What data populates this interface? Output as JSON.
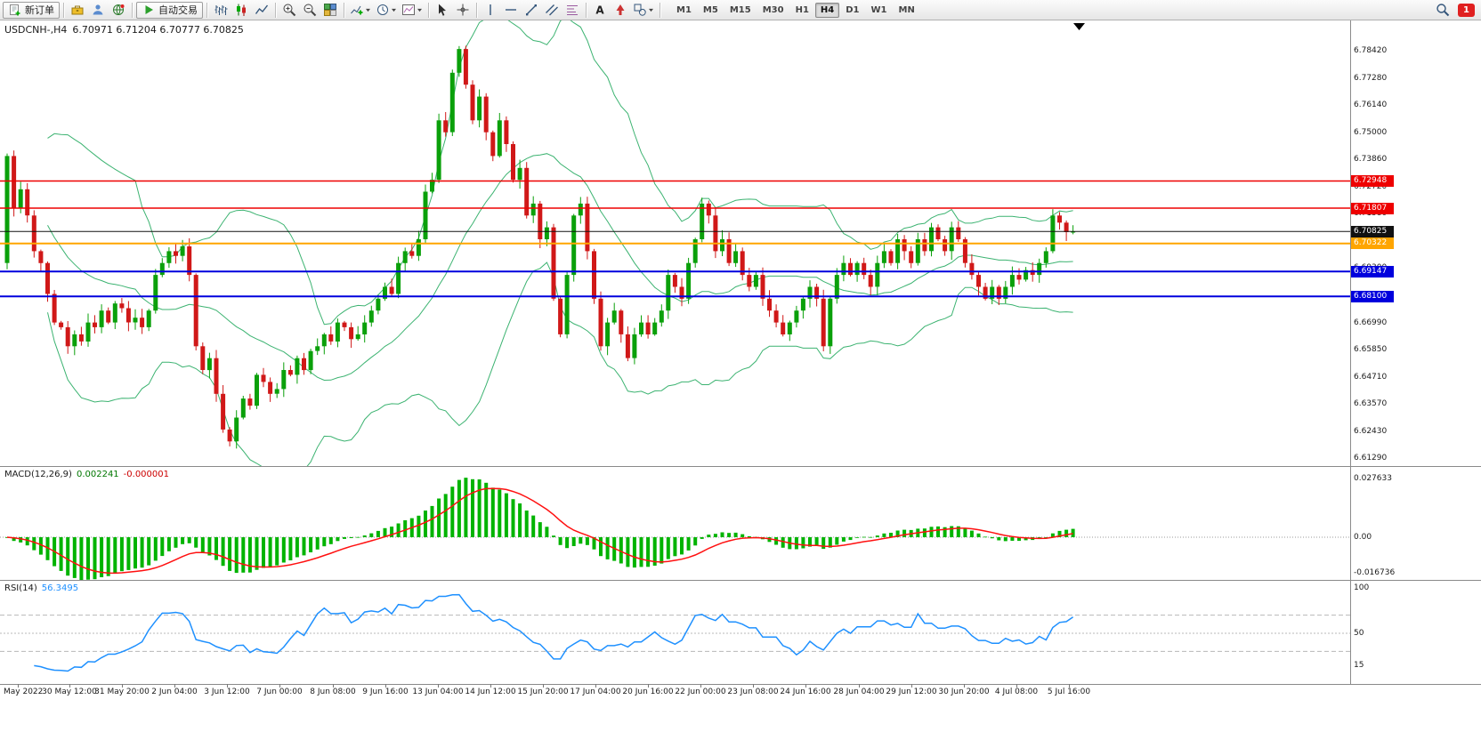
{
  "toolbar": {
    "new_order_label": "新订单",
    "autotrade_label": "自动交易",
    "timeframes": [
      "M1",
      "M5",
      "M15",
      "M30",
      "H1",
      "H4",
      "D1",
      "W1",
      "MN"
    ],
    "active_timeframe": "H4",
    "notification_count": "1"
  },
  "chart": {
    "title_symbol": "USDCNH-,H4",
    "title_ohlc": "6.70971 6.71204 6.70777 6.70825",
    "price_axis_labels": [
      "6.78420",
      "6.77280",
      "6.76140",
      "6.75000",
      "6.73860",
      "6.72720",
      "6.71580",
      "6.70440",
      "6.69300",
      "6.68160",
      "6.66990",
      "6.65850",
      "6.64710",
      "6.63570",
      "6.62430",
      "6.61290"
    ],
    "time_axis_labels": [
      "May 2022",
      "30 May 12:00",
      "31 May 20:00",
      "2 Jun 04:00",
      "3 Jun 12:00",
      "7 Jun 00:00",
      "8 Jun 08:00",
      "9 Jun 16:00",
      "13 Jun 04:00",
      "14 Jun 12:00",
      "15 Jun 20:00",
      "17 Jun 04:00",
      "20 Jun 16:00",
      "22 Jun 00:00",
      "23 Jun 08:00",
      "24 Jun 16:00",
      "28 Jun 04:00",
      "29 Jun 12:00",
      "30 Jun 20:00",
      "4 Jul 08:00",
      "5 Jul 16:00"
    ]
  },
  "macd_panel": {
    "label": "MACD(12,26,9)",
    "value_main": "0.002241",
    "value_signal": "-0.000001",
    "axis_labels": [
      "0.027633",
      "0.00",
      "-0.016736"
    ]
  },
  "rsi_panel": {
    "label": "RSI(14)",
    "value": "56.3495",
    "axis_labels": [
      "100",
      "50",
      "15"
    ]
  },
  "chart_data": {
    "type": "candlestick",
    "symbol": "USDCNH-",
    "timeframe": "H4",
    "current_ohlc": {
      "open": 6.70971,
      "high": 6.71204,
      "low": 6.70777,
      "close": 6.70825
    },
    "visible_price_range": [
      6.611,
      6.797
    ],
    "up_color": "#0aa00a",
    "down_color": "#d01818",
    "first_open": 6.695,
    "closes": [
      6.74,
      6.718,
      6.726,
      6.715,
      6.7,
      6.695,
      6.682,
      6.67,
      6.668,
      6.66,
      6.665,
      6.662,
      6.67,
      6.668,
      6.675,
      6.67,
      6.678,
      6.676,
      6.67,
      6.672,
      6.668,
      6.675,
      6.69,
      6.695,
      6.7,
      6.698,
      6.702,
      6.69,
      6.66,
      6.65,
      6.655,
      6.64,
      6.625,
      6.62,
      6.63,
      6.638,
      6.635,
      6.648,
      6.645,
      6.64,
      6.642,
      6.65,
      6.648,
      6.655,
      6.65,
      6.658,
      6.66,
      6.665,
      6.662,
      6.67,
      6.668,
      6.663,
      6.665,
      6.67,
      6.675,
      6.68,
      6.685,
      6.682,
      6.695,
      6.7,
      6.698,
      6.705,
      6.725,
      6.73,
      6.755,
      6.75,
      6.775,
      6.785,
      6.77,
      6.755,
      6.765,
      6.75,
      6.74,
      6.755,
      6.745,
      6.73,
      6.735,
      6.715,
      6.72,
      6.705,
      6.71,
      6.68,
      6.665,
      6.69,
      6.715,
      6.72,
      6.7,
      6.68,
      6.66,
      6.67,
      6.675,
      6.665,
      6.655,
      6.665,
      6.67,
      6.665,
      6.67,
      6.675,
      6.69,
      6.685,
      6.68,
      6.695,
      6.705,
      6.72,
      6.715,
      6.7,
      6.705,
      6.695,
      6.7,
      6.69,
      6.685,
      6.69,
      6.68,
      6.675,
      6.67,
      6.665,
      6.67,
      6.675,
      6.68,
      6.685,
      6.68,
      6.66,
      6.68,
      6.69,
      6.695,
      6.69,
      6.695,
      6.69,
      6.685,
      6.695,
      6.7,
      6.695,
      6.705,
      6.7,
      6.695,
      6.705,
      6.7,
      6.71,
      6.705,
      6.7,
      6.71,
      6.705,
      6.695,
      6.69,
      6.685,
      6.68,
      6.685,
      6.68,
      6.685,
      6.69,
      6.688,
      6.692,
      6.69,
      6.695,
      6.7,
      6.715,
      6.712,
      6.708,
      6.70825
    ],
    "hlines": [
      {
        "price": 6.72948,
        "label": "6.72948",
        "color": "#ee0000",
        "width": 1.4
      },
      {
        "price": 6.71807,
        "label": "6.71807",
        "color": "#ee0000",
        "width": 1.4
      },
      {
        "price": 6.70825,
        "label": "6.70825",
        "color": "#111111",
        "width": 1,
        "role": "current-price"
      },
      {
        "price": 6.70322,
        "label": "6.70322",
        "color": "#ffa500",
        "width": 2
      },
      {
        "price": 6.69147,
        "label": "6.69147",
        "color": "#0000dd",
        "width": 2
      },
      {
        "price": 6.681,
        "label": "6.68100",
        "color": "#0000dd",
        "width": 2
      }
    ],
    "indicators": [
      {
        "name": "Bollinger Bands",
        "period": 20,
        "deviation": 2,
        "color": "#3cb371"
      },
      {
        "name": "MACD",
        "fast": 12,
        "slow": 26,
        "signal": 9,
        "values": [
          0.002241,
          -1e-06
        ],
        "histogram_color": "#00b300",
        "signal_color": "#ff1010",
        "axis_range": [
          -0.016736,
          0.027633
        ]
      },
      {
        "name": "RSI",
        "period": 14,
        "value": 56.3495,
        "color": "#1e90ff",
        "axis_range": [
          0,
          100
        ],
        "levels": [
          70,
          50,
          30
        ]
      }
    ]
  }
}
